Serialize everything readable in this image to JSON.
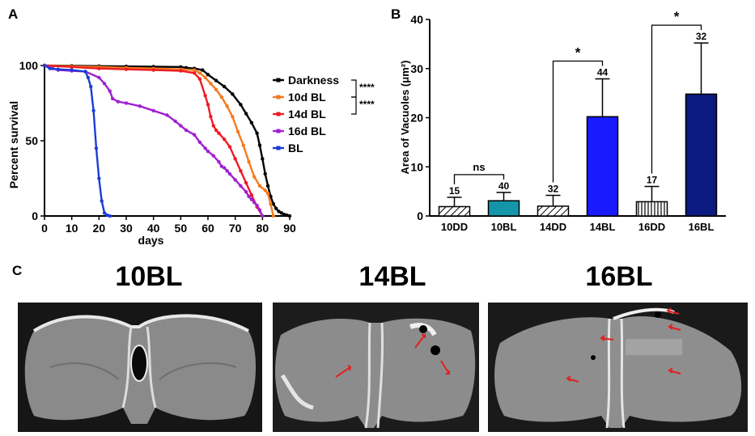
{
  "panels": {
    "a": "A",
    "b": "B",
    "c": "C"
  },
  "chart_data": [
    {
      "type": "line",
      "panel": "A",
      "ylabel": "Percent survival",
      "xlabel": "days",
      "xlim": [
        0,
        90
      ],
      "ylim": [
        0,
        100
      ],
      "xticks": [
        "0",
        "10",
        "20",
        "30",
        "40",
        "50",
        "60",
        "70",
        "80",
        "90"
      ],
      "yticks": [
        "0",
        "50",
        "100"
      ],
      "significance": [
        "****",
        "****"
      ],
      "series": [
        {
          "name": "Darkness",
          "color": "#000000",
          "x": [
            0,
            10,
            20,
            30,
            40,
            50,
            52,
            55,
            58,
            60,
            63,
            66,
            69,
            72,
            74,
            76,
            78,
            79,
            80,
            81,
            82,
            83,
            84,
            85,
            86,
            87,
            88,
            89,
            90
          ],
          "y": [
            100,
            99.8,
            99.6,
            99.4,
            99.2,
            99,
            98.5,
            98,
            97,
            94,
            90,
            86,
            81,
            74,
            68,
            62,
            55,
            47,
            38,
            28,
            20,
            13,
            8,
            5,
            3,
            2,
            1,
            0.5,
            0
          ]
        },
        {
          "name": "10d BL",
          "color": "#f57a20",
          "x": [
            0,
            10,
            20,
            30,
            40,
            50,
            55,
            57,
            59,
            61,
            63,
            65,
            67,
            69,
            71,
            73,
            75,
            77,
            79,
            81,
            82,
            83,
            84
          ],
          "y": [
            100,
            99.5,
            99,
            98.5,
            98,
            97.5,
            97,
            95,
            92,
            88,
            84,
            79,
            73,
            66,
            56,
            47,
            36,
            26,
            20,
            17,
            15,
            8,
            0
          ]
        },
        {
          "name": "14d BL",
          "color": "#ed1c24",
          "x": [
            0,
            10,
            20,
            30,
            40,
            50,
            55,
            57,
            59,
            60,
            61,
            62,
            63,
            64,
            66,
            68,
            70,
            72,
            74,
            76,
            78,
            80
          ],
          "y": [
            100,
            99,
            98,
            97.5,
            97,
            96.5,
            95,
            91,
            80,
            74,
            66,
            60,
            57,
            55,
            51,
            46,
            38,
            30,
            22,
            14,
            6,
            0
          ]
        },
        {
          "name": "16d BL",
          "color": "#a020d0",
          "x": [
            0,
            3,
            5,
            10,
            15,
            20,
            22,
            24,
            25,
            27,
            30,
            35,
            40,
            45,
            48,
            50,
            52,
            55,
            57,
            59,
            60,
            62,
            64,
            65,
            66,
            67,
            68,
            70,
            72,
            74,
            75,
            76,
            77,
            78,
            79,
            80
          ],
          "y": [
            100,
            98,
            97,
            96.5,
            96,
            92,
            88,
            83,
            78,
            76,
            75,
            73,
            70,
            67,
            63,
            60,
            57,
            54,
            49,
            45,
            43,
            40,
            36,
            33,
            32,
            30,
            28,
            24,
            20,
            16,
            13,
            11,
            9,
            7,
            4,
            0
          ]
        },
        {
          "name": "BL",
          "color": "#1a3cd8",
          "x": [
            0,
            2,
            5,
            10,
            15,
            16,
            17,
            18,
            19,
            20,
            21,
            22,
            23,
            24
          ],
          "y": [
            100,
            98,
            97.5,
            97,
            96,
            92,
            86,
            70,
            45,
            25,
            10,
            2,
            0.5,
            0
          ]
        }
      ]
    },
    {
      "type": "bar",
      "panel": "B",
      "ylabel": "Area of Vacuoles (μm²)",
      "ylim": [
        0,
        40
      ],
      "yticks": [
        "0",
        "10",
        "20",
        "30",
        "40"
      ],
      "categories": [
        "10DD",
        "10BL",
        "14DD",
        "14BL",
        "16DD",
        "16BL"
      ],
      "values": [
        1.9,
        3.1,
        2.0,
        20.2,
        2.9,
        24.8
      ],
      "errors": [
        1.9,
        1.7,
        2.2,
        7.7,
        3.1,
        10.4
      ],
      "n_labels": [
        "15",
        "40",
        "32",
        "44",
        "17",
        "32"
      ],
      "fills": [
        "hatch-diag",
        "#1496a8",
        "hatch-diag",
        "#1a1aff",
        "hatch-vert",
        "#0a1a80"
      ],
      "comparisons": [
        {
          "from": "10DD",
          "to": "10BL",
          "label": "ns"
        },
        {
          "from": "14DD",
          "to": "14BL",
          "label": "*"
        },
        {
          "from": "16DD",
          "to": "16BL",
          "label": "*"
        }
      ]
    }
  ],
  "micrographs": [
    {
      "title": "10BL"
    },
    {
      "title": "14BL"
    },
    {
      "title": "16BL"
    }
  ]
}
